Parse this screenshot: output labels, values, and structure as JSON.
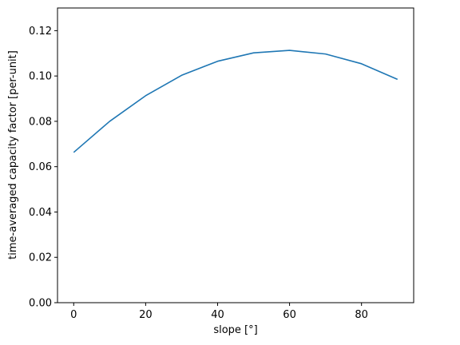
{
  "chart_data": {
    "type": "line",
    "title": "",
    "xlabel": "slope [°]",
    "ylabel": "time-averaged capacity factor [per-unit]",
    "xlim": [
      -4.5,
      94.5
    ],
    "ylim": [
      0,
      0.13
    ],
    "xticks": [
      0,
      20,
      40,
      60,
      80
    ],
    "xtick_labels": [
      "0",
      "20",
      "40",
      "60",
      "80"
    ],
    "yticks": [
      0,
      0.02,
      0.04,
      0.06,
      0.08,
      0.1,
      0.12
    ],
    "ytick_labels": [
      "0.00",
      "0.02",
      "0.04",
      "0.06",
      "0.08",
      "0.10",
      "0.12"
    ],
    "grid": false,
    "series": [
      {
        "color": "#1f77b4",
        "x": [
          0,
          10,
          20,
          30,
          40,
          50,
          60,
          70,
          80,
          90
        ],
        "y": [
          0.0663,
          0.08,
          0.0913,
          0.1003,
          0.1065,
          0.1102,
          0.1113,
          0.1097,
          0.1054,
          0.0985
        ]
      }
    ]
  }
}
